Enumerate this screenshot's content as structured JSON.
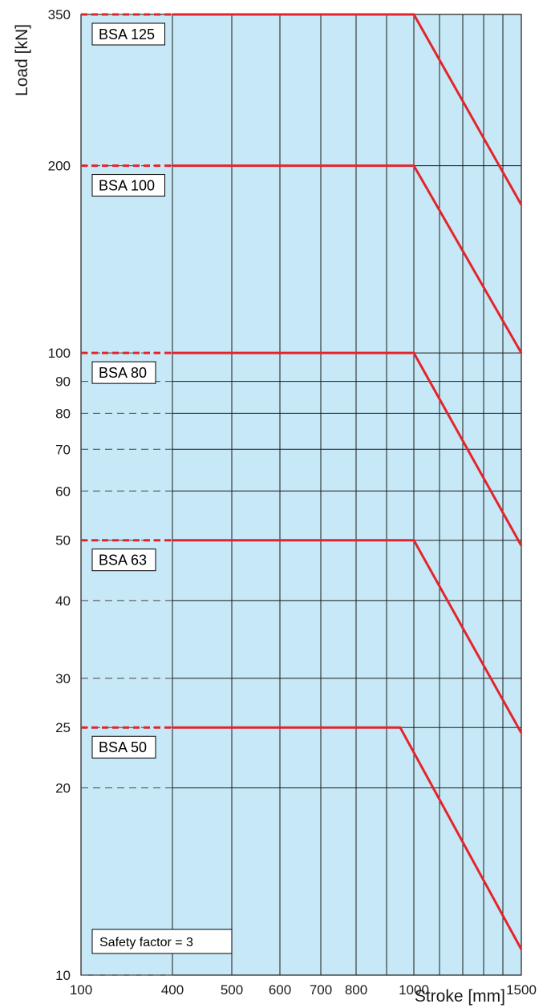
{
  "chart_data": {
    "type": "line",
    "xlabel": "Stroke [mm]",
    "ylabel": "Load [kN]",
    "x_ticks": [
      100,
      400,
      500,
      600,
      700,
      800,
      1000,
      1500
    ],
    "x_grid": [
      400,
      500,
      600,
      700,
      800,
      900,
      1000,
      1100,
      1200,
      1300,
      1400,
      1500
    ],
    "y_ticks": [
      10,
      20,
      25,
      30,
      40,
      50,
      60,
      70,
      80,
      90,
      100,
      200,
      350
    ],
    "y_scale": "log",
    "y_range": [
      10,
      350
    ],
    "grid": true,
    "annotation": "Safety factor = 3",
    "series": [
      {
        "name": "BSA 125",
        "points": [
          [
            100,
            350
          ],
          [
            1000,
            350
          ],
          [
            1500,
            173
          ]
        ]
      },
      {
        "name": "BSA 100",
        "points": [
          [
            100,
            200
          ],
          [
            1000,
            200
          ],
          [
            1500,
            100
          ]
        ]
      },
      {
        "name": "BSA 80",
        "points": [
          [
            100,
            100
          ],
          [
            1000,
            100
          ],
          [
            1500,
            49
          ]
        ]
      },
      {
        "name": "BSA 63",
        "points": [
          [
            100,
            50
          ],
          [
            1000,
            50
          ],
          [
            1500,
            24.5
          ]
        ]
      },
      {
        "name": "BSA 50",
        "points": [
          [
            100,
            25
          ],
          [
            950,
            25
          ],
          [
            1500,
            11
          ]
        ]
      }
    ],
    "colors": {
      "background": "#c7e8f7",
      "line": "#e3252b",
      "grid": "#1a1a1a"
    }
  }
}
